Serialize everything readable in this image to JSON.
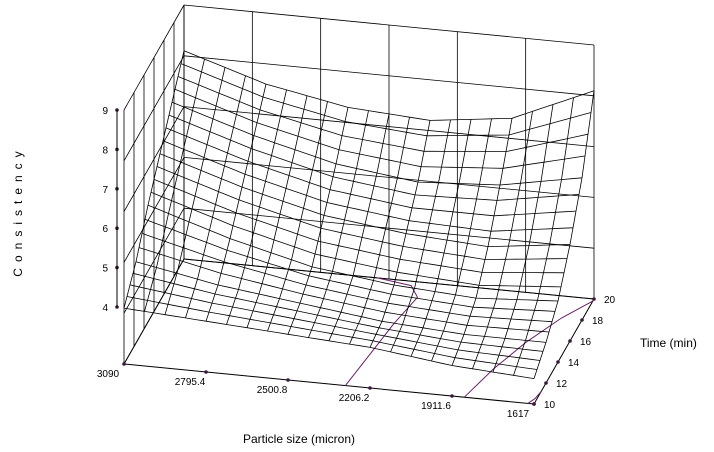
{
  "chart_data": {
    "type": "surface3d",
    "title": "",
    "xlabel": "Particle size (micron)",
    "ylabel": "Time (min)",
    "zlabel": "Consistency",
    "x_range": [
      1617,
      3090
    ],
    "y_range": [
      10,
      20
    ],
    "z_range": [
      4,
      9
    ],
    "x_ticks": [
      "3090",
      "2795.4",
      "2500.8",
      "2206.2",
      "1911.6",
      "1617"
    ],
    "y_ticks": [
      "10",
      "12",
      "14",
      "16",
      "18",
      "20"
    ],
    "z_ticks": [
      "4",
      "5",
      "6",
      "7",
      "8",
      "9"
    ],
    "surface_z_grid": [
      [
        5.1,
        5.0,
        4.9,
        4.8,
        4.6,
        4.5
      ],
      [
        5.6,
        5.3,
        5.1,
        4.9,
        4.8,
        4.8
      ],
      [
        6.3,
        5.8,
        5.4,
        5.2,
        5.1,
        5.2
      ],
      [
        6.9,
        6.4,
        6.0,
        5.8,
        5.7,
        5.9
      ],
      [
        7.5,
        7.0,
        6.6,
        6.4,
        6.5,
        6.8
      ],
      [
        8.1,
        7.6,
        7.3,
        7.2,
        7.4,
        8.1
      ]
    ],
    "grid": true,
    "mark_color": "#000000",
    "contour_color": "#6b1f6b"
  }
}
